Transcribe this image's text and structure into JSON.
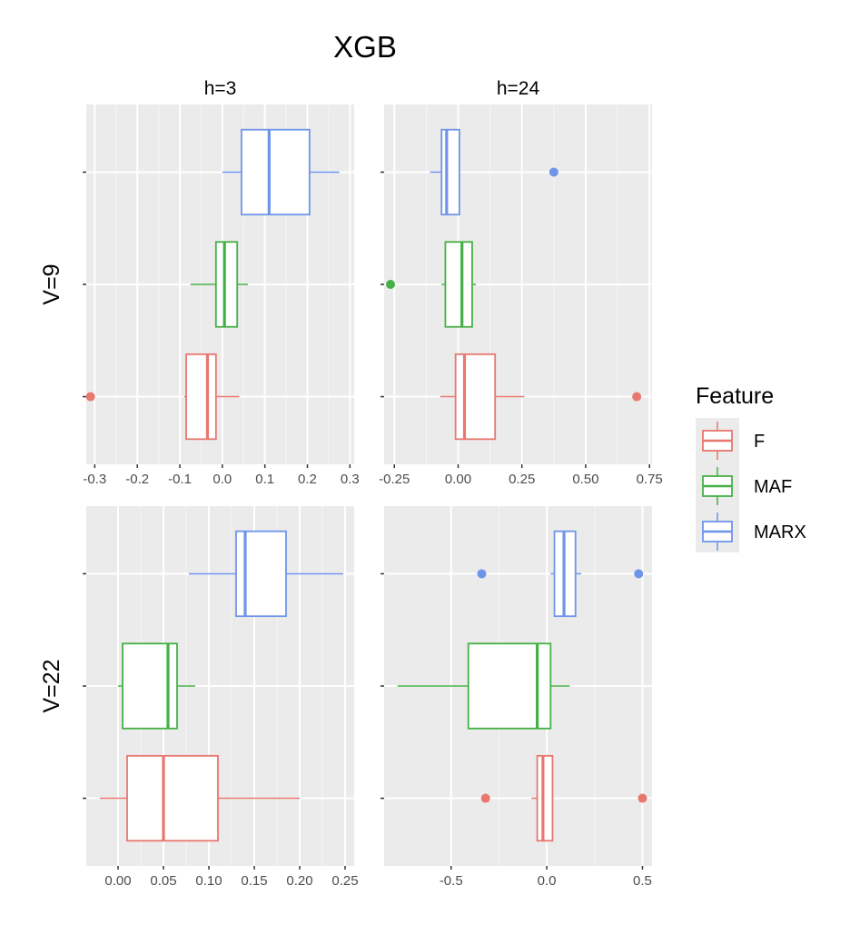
{
  "chart_data": {
    "type": "boxplot",
    "title": "XGB",
    "columns": [
      "h=3",
      "h=24"
    ],
    "rows": [
      "V=9",
      "V=22"
    ],
    "legend": {
      "title": "Feature",
      "placement": "right",
      "entries": [
        {
          "name": "F",
          "color": "#e8776f"
        },
        {
          "name": "MAF",
          "color": "#45b045"
        },
        {
          "name": "MARX",
          "color": "#6f95ea"
        }
      ]
    },
    "panels": [
      {
        "row": "V=9",
        "column": "h=3",
        "xlim": [
          -0.32,
          0.31
        ],
        "xticks": [
          -0.3,
          -0.2,
          -0.1,
          0.0,
          0.1,
          0.2,
          0.3
        ],
        "xtick_labels": [
          "-0.3",
          "-0.2",
          "-0.1",
          "0.0",
          "0.1",
          "0.2",
          "0.3"
        ],
        "boxes": [
          {
            "feature": "F",
            "whisker_low": -0.09,
            "q1": -0.085,
            "median": -0.035,
            "q3": -0.015,
            "whisker_high": 0.04,
            "outliers": [
              -0.31
            ]
          },
          {
            "feature": "MAF",
            "whisker_low": -0.075,
            "q1": -0.015,
            "median": 0.005,
            "q3": 0.035,
            "whisker_high": 0.06,
            "outliers": []
          },
          {
            "feature": "MARX",
            "whisker_low": 0.0,
            "q1": 0.045,
            "median": 0.11,
            "q3": 0.205,
            "whisker_high": 0.275,
            "outliers": []
          }
        ]
      },
      {
        "row": "V=9",
        "column": "h=24",
        "xlim": [
          -0.29,
          0.76
        ],
        "xticks": [
          -0.25,
          0.0,
          0.25,
          0.5,
          0.75
        ],
        "xtick_labels": [
          "-0.25",
          "0.00",
          "0.25",
          "0.50",
          "0.75"
        ],
        "boxes": [
          {
            "feature": "F",
            "whisker_low": -0.07,
            "q1": -0.01,
            "median": 0.025,
            "q3": 0.145,
            "whisker_high": 0.26,
            "outliers": [
              0.7
            ]
          },
          {
            "feature": "MAF",
            "whisker_low": -0.065,
            "q1": -0.05,
            "median": 0.015,
            "q3": 0.055,
            "whisker_high": 0.07,
            "outliers": [
              -0.265
            ]
          },
          {
            "feature": "MARX",
            "whisker_low": -0.11,
            "q1": -0.065,
            "median": -0.045,
            "q3": 0.005,
            "whisker_high": 0.005,
            "outliers": [
              0.375
            ]
          }
        ]
      },
      {
        "row": "V=22",
        "column": "h=3",
        "xlim": [
          -0.035,
          0.26
        ],
        "xticks": [
          0.0,
          0.05,
          0.1,
          0.15,
          0.2,
          0.25
        ],
        "xtick_labels": [
          "0.00",
          "0.05",
          "0.10",
          "0.15",
          "0.20",
          "0.25"
        ],
        "boxes": [
          {
            "feature": "F",
            "whisker_low": -0.02,
            "q1": 0.01,
            "median": 0.05,
            "q3": 0.11,
            "whisker_high": 0.2,
            "outliers": []
          },
          {
            "feature": "MAF",
            "whisker_low": 0.0,
            "q1": 0.005,
            "median": 0.055,
            "q3": 0.065,
            "whisker_high": 0.085,
            "outliers": []
          },
          {
            "feature": "MARX",
            "whisker_low": 0.078,
            "q1": 0.13,
            "median": 0.14,
            "q3": 0.185,
            "whisker_high": 0.248,
            "outliers": []
          }
        ]
      },
      {
        "row": "V=22",
        "column": "h=24",
        "xlim": [
          -0.85,
          0.55
        ],
        "xticks": [
          -0.5,
          0.0,
          0.5
        ],
        "xtick_labels": [
          "-0.5",
          "0.0",
          "0.5"
        ],
        "boxes": [
          {
            "feature": "F",
            "whisker_low": -0.08,
            "q1": -0.05,
            "median": -0.02,
            "q3": 0.03,
            "whisker_high": 0.03,
            "outliers": [
              -0.32,
              0.5
            ]
          },
          {
            "feature": "MAF",
            "whisker_low": -0.78,
            "q1": -0.41,
            "median": -0.05,
            "q3": 0.02,
            "whisker_high": 0.12,
            "outliers": []
          },
          {
            "feature": "MARX",
            "whisker_low": 0.02,
            "q1": 0.04,
            "median": 0.09,
            "q3": 0.15,
            "whisker_high": 0.18,
            "outliers": [
              -0.34,
              0.48
            ]
          }
        ]
      }
    ]
  }
}
